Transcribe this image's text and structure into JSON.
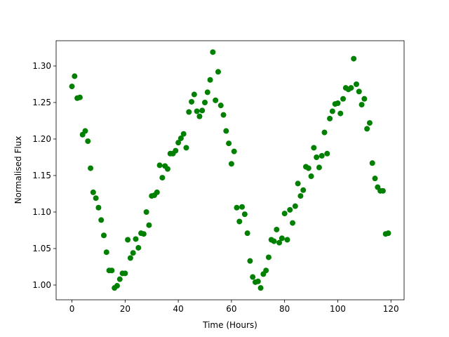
{
  "chart_data": {
    "type": "scatter",
    "x_label": "Time (Hours)",
    "y_label": "Normalised Flux",
    "color": "#008000",
    "xlim": [
      -5.95,
      124.95
    ],
    "xticks": [
      0,
      20,
      40,
      60,
      80,
      100,
      120
    ],
    "ylim": [
      0.9798,
      1.3346
    ],
    "yticks": [
      {
        "value": 1.0,
        "label": "1.00"
      },
      1.05,
      {
        "value": 1.1,
        "label": "1.10"
      },
      1.15,
      {
        "value": 1.2,
        "label": "1.20"
      },
      1.25,
      {
        "value": 1.3,
        "label": "1.30"
      }
    ],
    "x": [
      0,
      1,
      2,
      3,
      4,
      5,
      6,
      7,
      8,
      9,
      10,
      11,
      12,
      13,
      14,
      15,
      16,
      17,
      18,
      19,
      20,
      21,
      22,
      23,
      24,
      25,
      26,
      27,
      28,
      29,
      30,
      31,
      32,
      33,
      34,
      35,
      36,
      37,
      38,
      39,
      40,
      41,
      42,
      43,
      44,
      45,
      46,
      47,
      48,
      49,
      50,
      51,
      52,
      53,
      54,
      55,
      56,
      57,
      58,
      59,
      60,
      61,
      62,
      63,
      64,
      65,
      66,
      67,
      68,
      69,
      70,
      71,
      72,
      73,
      74,
      75,
      76,
      77,
      78,
      79,
      80,
      81,
      82,
      83,
      84,
      85,
      86,
      87,
      88,
      89,
      90,
      91,
      92,
      93,
      94,
      95,
      96,
      97,
      98,
      99,
      100,
      101,
      102,
      103,
      104,
      105,
      106,
      107,
      108,
      109,
      110,
      111,
      112,
      113,
      114,
      115,
      116,
      117,
      118,
      119
    ],
    "y": [
      1.272,
      1.286,
      1.256,
      1.257,
      1.206,
      1.211,
      1.197,
      1.16,
      1.127,
      1.119,
      1.106,
      1.089,
      1.068,
      1.045,
      1.02,
      1.02,
      0.996,
      0.999,
      1.008,
      1.016,
      1.016,
      1.062,
      1.037,
      1.044,
      1.063,
      1.051,
      1.071,
      1.07,
      1.1,
      1.082,
      1.122,
      1.123,
      1.127,
      1.164,
      1.147,
      1.163,
      1.159,
      1.18,
      1.18,
      1.184,
      1.195,
      1.201,
      1.207,
      1.188,
      1.237,
      1.251,
      1.261,
      1.238,
      1.231,
      1.239,
      1.25,
      1.264,
      1.281,
      1.319,
      1.253,
      1.292,
      1.246,
      1.233,
      1.211,
      1.194,
      1.166,
      1.183,
      1.106,
      1.087,
      1.107,
      1.097,
      1.071,
      1.033,
      1.011,
      1.004,
      1.005,
      0.996,
      1.015,
      1.02,
      1.038,
      1.062,
      1.06,
      1.076,
      1.058,
      1.064,
      1.098,
      1.062,
      1.103,
      1.085,
      1.108,
      1.139,
      1.122,
      1.13,
      1.162,
      1.16,
      1.149,
      1.188,
      1.175,
      1.161,
      1.177,
      1.209,
      1.18,
      1.228,
      1.238,
      1.248,
      1.249,
      1.235,
      1.255,
      1.27,
      1.268,
      1.27,
      1.31,
      1.275,
      1.265,
      1.247,
      1.255,
      1.214,
      1.222,
      1.167,
      1.146,
      1.134,
      1.129,
      1.129,
      1.07,
      1.071
    ]
  }
}
